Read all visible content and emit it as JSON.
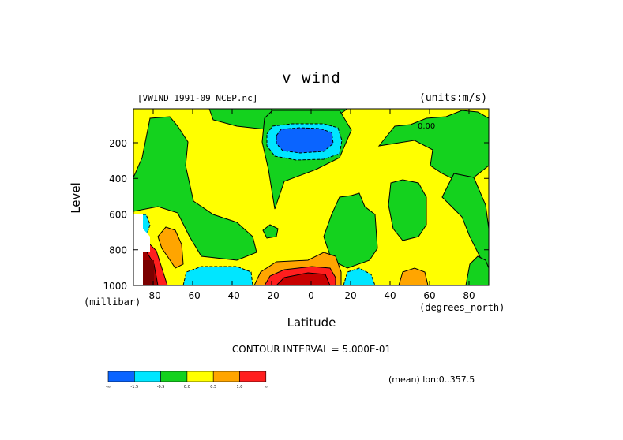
{
  "chart_data": {
    "type": "heatmap",
    "title": "v wind",
    "source_label": "[VWIND_1991-09_NCEP.nc]",
    "units_label": "(units:m/s)",
    "xlabel": "Latitude",
    "x_unit_label": "(degrees_north)",
    "ylabel": "Level",
    "y_unit_label": "(millibar)",
    "xlim": [
      -90,
      90
    ],
    "ylim": [
      1000,
      10
    ],
    "x_ticks": [
      {
        "value": -80,
        "label": "-80"
      },
      {
        "value": -60,
        "label": "-60"
      },
      {
        "value": -40,
        "label": "-40"
      },
      {
        "value": -20,
        "label": "-20"
      },
      {
        "value": 0,
        "label": "0"
      },
      {
        "value": 20,
        "label": "20"
      },
      {
        "value": 40,
        "label": "40"
      },
      {
        "value": 60,
        "label": "60"
      },
      {
        "value": 80,
        "label": "80"
      }
    ],
    "y_ticks": [
      {
        "value": 200,
        "label": "200"
      },
      {
        "value": 400,
        "label": "400"
      },
      {
        "value": 600,
        "label": "600"
      },
      {
        "value": 800,
        "label": "800"
      },
      {
        "value": 1000,
        "label": "1000"
      }
    ],
    "contour_interval_text": "CONTOUR INTERVAL = 5.000E-01",
    "mean_note": "(mean) lon:0..357.5",
    "zero_contour_label": "0.00",
    "colorbar": [
      {
        "label": "-∞",
        "color": "#0a64ff"
      },
      {
        "label": "-1.5",
        "color": "#00e6ff"
      },
      {
        "label": "-0.5",
        "color": "#14d21e"
      },
      {
        "label": "0.0",
        "color": "#ffff00"
      },
      {
        "label": "0.5",
        "color": "#ffa500"
      },
      {
        "label": "1.0",
        "color": "#ff1e1e"
      },
      {
        "label": "∞",
        "color": "#ffffff"
      }
    ],
    "colorbar_segments": [
      {
        "range": "< -1.5",
        "color": "#0a64ff"
      },
      {
        "range": "-1.5 to -0.5",
        "color": "#00e6ff"
      },
      {
        "range": "-0.5 to 0.0",
        "color": "#14d21e"
      },
      {
        "range": "0.0 to 0.5",
        "color": "#ffff00"
      },
      {
        "range": "0.5 to 1.0",
        "color": "#ffa500"
      },
      {
        "range": "> 1.0",
        "color": "#ff1e1e"
      }
    ],
    "features": [
      {
        "name": "upper-tropical-min",
        "lat": [
          -20,
          15
        ],
        "level": [
          130,
          300
        ],
        "value_range": "< -1.5",
        "color": "#0a64ff"
      },
      {
        "name": "near-surface-equatorial-max",
        "lat": [
          -25,
          15
        ],
        "level": [
          880,
          1000
        ],
        "value_range": "> 1.0",
        "color": "#c80000"
      },
      {
        "name": "antarctic-surface-max",
        "lat": [
          -90,
          -74
        ],
        "level": [
          750,
          1000
        ],
        "value_range": "> 1.0",
        "color": "#c80000"
      },
      {
        "name": "southern-midlat-surface-min",
        "lat": [
          -65,
          -30
        ],
        "level": [
          880,
          1000
        ],
        "value_range": "-1.5 to -0.5",
        "color": "#00e6ff"
      }
    ]
  }
}
